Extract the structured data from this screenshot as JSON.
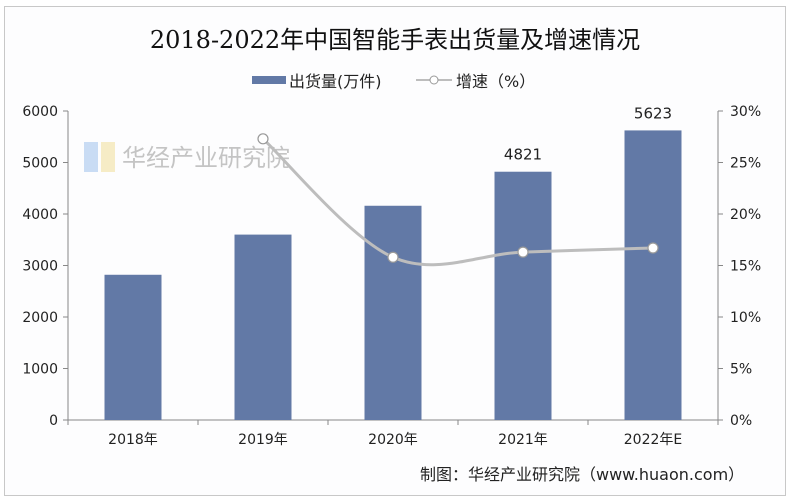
{
  "chart_data": {
    "type": "bar+line",
    "title": "2018-2022年中国智能手表出货量及增速情况",
    "categories": [
      "2018年",
      "2019年",
      "2020年",
      "2021年",
      "2022年E"
    ],
    "series": [
      {
        "name": "出货量(万件)",
        "type": "bar",
        "axis": "left",
        "values": [
          2820,
          3600,
          4160,
          4821,
          5623
        ],
        "data_labels": [
          null,
          null,
          null,
          "4821",
          "5623"
        ],
        "color": "#6279a6"
      },
      {
        "name": "增速（%）",
        "type": "line",
        "axis": "right",
        "values": [
          null,
          27.3,
          15.8,
          16.3,
          16.7
        ],
        "color": "#bdbdbd",
        "smooth": true
      }
    ],
    "left_axis": {
      "range": [
        0,
        6000
      ],
      "ticks": [
        "0",
        "1000",
        "2000",
        "3000",
        "4000",
        "5000",
        "6000"
      ]
    },
    "right_axis": {
      "range": [
        0,
        30
      ],
      "ticks": [
        "0%",
        "5%",
        "10%",
        "15%",
        "20%",
        "25%",
        "30%"
      ]
    },
    "grid": false,
    "legend": "top"
  },
  "source": "制图：华经产业研究院（www.huaon.com）",
  "watermark": {
    "text": "华经产业研究院",
    "url": "www.huaon.com"
  }
}
